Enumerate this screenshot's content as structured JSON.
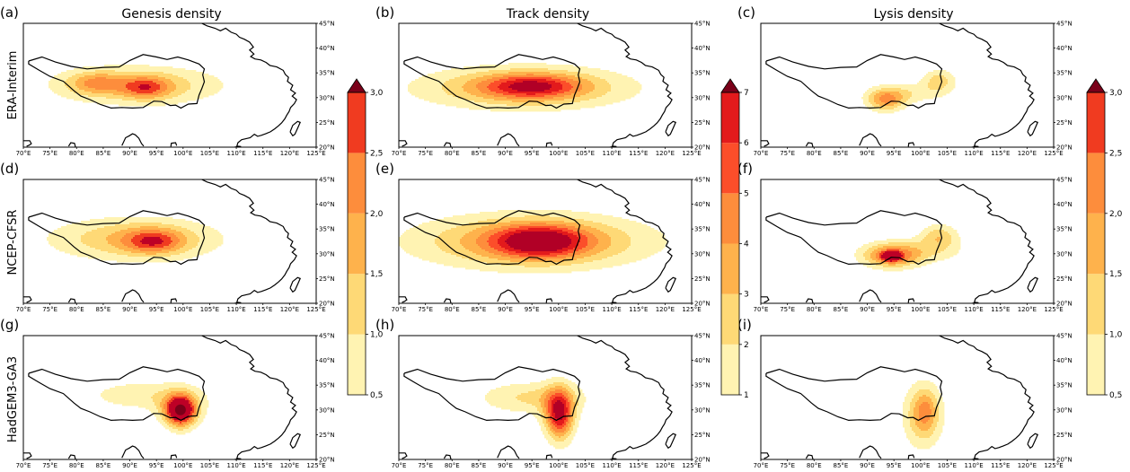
{
  "figure": {
    "column_titles": [
      "Genesis density",
      "Track density",
      "Lysis density"
    ],
    "row_labels": [
      "ERA-Interim",
      "NCEP-CFSR",
      "HadGEM3-GA3"
    ],
    "panel_labels": [
      "(a)",
      "(b)",
      "(c)",
      "(d)",
      "(e)",
      "(f)",
      "(g)",
      "(h)",
      "(i)"
    ]
  },
  "chart_data": {
    "type": "heatmap",
    "map_type": "filled-contour density maps, 3x3 panel grid",
    "x_axis": {
      "range": [
        70,
        125
      ],
      "units": "degrees E",
      "tick_labels": [
        "70°E",
        "75°E",
        "80°E",
        "85°E",
        "90°E",
        "95°E",
        "100°E",
        "105°E",
        "110°E",
        "115°E",
        "120°E",
        "125°E"
      ]
    },
    "y_axis": {
      "range": [
        20,
        45
      ],
      "units": "degrees N",
      "tick_labels": [
        "20°N",
        "25°N",
        "30°N",
        "35°N",
        "40°N",
        "45°N"
      ]
    },
    "colorbars": [
      {
        "for_column": 0,
        "levels": [
          0.5,
          1.0,
          1.5,
          2.0,
          2.5,
          3.0
        ],
        "tick_labels": [
          "0,5",
          "1,0",
          "1,5",
          "2,0",
          "2,5",
          "3,0"
        ],
        "extend": "max"
      },
      {
        "for_column": 1,
        "levels": [
          1,
          2,
          3,
          4,
          5,
          6,
          7
        ],
        "tick_labels": [
          "1",
          "2",
          "3",
          "4",
          "5",
          "6",
          "7"
        ],
        "extend": "max"
      },
      {
        "for_column": 2,
        "levels": [
          0.5,
          1.0,
          1.5,
          2.0,
          2.5,
          3.0
        ],
        "tick_labels": [
          "0,5",
          "1,0",
          "1,5",
          "2,0",
          "2,5",
          "3,0"
        ],
        "extend": "max"
      }
    ],
    "palette": [
      "#fff3b2",
      "#fed976",
      "#feb24c",
      "#fd8d3c",
      "#f03b20",
      "#bd0026"
    ],
    "palette_track": [
      "#fff3b2",
      "#fed976",
      "#feb24c",
      "#fd8d3c",
      "#fc4e2a",
      "#e31a1c",
      "#b10026"
    ],
    "overlay_color": "#7a0019",
    "plateau_outline": [
      [
        71,
        37.4
      ],
      [
        73.5,
        38.2
      ],
      [
        76,
        37.2
      ],
      [
        79,
        36.3
      ],
      [
        82,
        35.8
      ],
      [
        85,
        36.1
      ],
      [
        88,
        36.2
      ],
      [
        90,
        37.5
      ],
      [
        92.5,
        38.7
      ],
      [
        95,
        38.2
      ],
      [
        97,
        37.7
      ],
      [
        99,
        38.2
      ],
      [
        101,
        37.6
      ],
      [
        103,
        36.8
      ],
      [
        104,
        35.8
      ],
      [
        103.7,
        34.6
      ],
      [
        104,
        33.2
      ],
      [
        103.5,
        31.8
      ],
      [
        103,
        30.5
      ],
      [
        102.6,
        28.8
      ],
      [
        101,
        28.7
      ],
      [
        99.6,
        27.9
      ],
      [
        98.6,
        28.5
      ],
      [
        97.6,
        28.4
      ],
      [
        96,
        29.2
      ],
      [
        94.5,
        29.3
      ],
      [
        92.5,
        28
      ],
      [
        90.5,
        27.9
      ],
      [
        88.5,
        28
      ],
      [
        86.5,
        27.9
      ],
      [
        84.5,
        28.6
      ],
      [
        82.5,
        29.6
      ],
      [
        80.8,
        30.3
      ],
      [
        79.5,
        31.4
      ],
      [
        77.5,
        33.3
      ],
      [
        75,
        34.3
      ],
      [
        73,
        35.5
      ],
      [
        71,
        36.8
      ],
      [
        71,
        37.4
      ]
    ],
    "panels": [
      {
        "label": "(a)",
        "row": "ERA-Interim",
        "column": "Genesis density",
        "blobs": [
          {
            "lon": 91.5,
            "lat": 32.5,
            "rx": 15.5,
            "ry": 3.8,
            "peak": 1.45
          },
          {
            "lon": 93.0,
            "lat": 32.0,
            "rx": 4.5,
            "ry": 2.2,
            "peak": 1.65
          },
          {
            "lon": 83.5,
            "lat": 33.0,
            "rx": 5.0,
            "ry": 2.2,
            "peak": 1.25
          }
        ]
      },
      {
        "label": "(b)",
        "row": "ERA-Interim",
        "column": "Track density",
        "blobs": [
          {
            "lon": 93.5,
            "lat": 32.0,
            "rx": 19.5,
            "ry": 4.2,
            "peak": 3.5
          },
          {
            "lon": 95.0,
            "lat": 32.3,
            "rx": 9.0,
            "ry": 2.4,
            "peak": 4.5
          },
          {
            "lon": 94.0,
            "lat": 32.3,
            "rx": 0.6,
            "ry": 0.6,
            "peak": 5.3
          }
        ]
      },
      {
        "label": "(c)",
        "row": "ERA-Interim",
        "column": "Lysis density",
        "blobs": [
          {
            "lon": 93.5,
            "lat": 29.5,
            "rx": 3.5,
            "ry": 2.2,
            "peak": 2.0
          },
          {
            "lon": 103.5,
            "lat": 33.5,
            "rx": 3.0,
            "ry": 2.2,
            "peak": 1.25
          },
          {
            "lon": 98.0,
            "lat": 31.0,
            "rx": 7.0,
            "ry": 2.0,
            "peak": 0.8
          }
        ]
      },
      {
        "label": "(d)",
        "row": "NCEP-CFSR",
        "column": "Genesis density",
        "blobs": [
          {
            "lon": 91.0,
            "lat": 33.0,
            "rx": 15.5,
            "ry": 4.2,
            "peak": 1.55
          },
          {
            "lon": 94.5,
            "lat": 32.5,
            "rx": 5.5,
            "ry": 2.5,
            "peak": 1.8
          }
        ]
      },
      {
        "label": "(e)",
        "row": "NCEP-CFSR",
        "column": "Track density",
        "blobs": [
          {
            "lon": 95.0,
            "lat": 32.5,
            "rx": 21.0,
            "ry": 5.2,
            "peak": 4.2
          },
          {
            "lon": 96.5,
            "lat": 32.5,
            "rx": 8.5,
            "ry": 3.2,
            "peak": 5.4
          }
        ]
      },
      {
        "label": "(f)",
        "row": "NCEP-CFSR",
        "column": "Lysis density",
        "blobs": [
          {
            "lon": 94.5,
            "lat": 29.5,
            "rx": 5.0,
            "ry": 2.3,
            "peak": 2.15
          },
          {
            "lon": 94.5,
            "lat": 29.5,
            "rx": 1.5,
            "ry": 0.9,
            "peak": 2.8
          },
          {
            "lon": 103.5,
            "lat": 33.5,
            "rx": 3.5,
            "ry": 2.5,
            "peak": 1.3
          },
          {
            "lon": 99.0,
            "lat": 30.5,
            "rx": 9.0,
            "ry": 2.5,
            "peak": 0.9
          }
        ]
      },
      {
        "label": "(g)",
        "row": "HadGEM3-GA3",
        "column": "Genesis density",
        "blobs": [
          {
            "lon": 93.0,
            "lat": 33.0,
            "rx": 11.0,
            "ry": 3.0,
            "peak": 0.9
          },
          {
            "lon": 99.5,
            "lat": 30.0,
            "rx": 3.4,
            "ry": 3.0,
            "peak": 3.3
          },
          {
            "lon": 99.5,
            "lat": 29.5,
            "rx": 2.2,
            "ry": 3.5,
            "peak": 1.3
          }
        ],
        "overlay_marker": {
          "lon": 99.5,
          "lat": 30.0
        }
      },
      {
        "label": "(h)",
        "row": "HadGEM3-GA3",
        "column": "Track density",
        "blobs": [
          {
            "lon": 95.0,
            "lat": 32.5,
            "rx": 10.0,
            "ry": 3.2,
            "peak": 2.2
          },
          {
            "lon": 100.0,
            "lat": 29.5,
            "rx": 2.8,
            "ry": 4.8,
            "peak": 5.6
          },
          {
            "lon": 100.5,
            "lat": 28.0,
            "rx": 2.2,
            "ry": 5.0,
            "peak": 1.8
          }
        ]
      },
      {
        "label": "(i)",
        "row": "HadGEM3-GA3",
        "column": "Lysis density",
        "blobs": [
          {
            "lon": 100.5,
            "lat": 29.0,
            "rx": 3.5,
            "ry": 6.2,
            "peak": 1.75
          },
          {
            "lon": 101.0,
            "lat": 30.0,
            "rx": 1.8,
            "ry": 3.5,
            "peak": 0.7
          }
        ]
      }
    ]
  }
}
